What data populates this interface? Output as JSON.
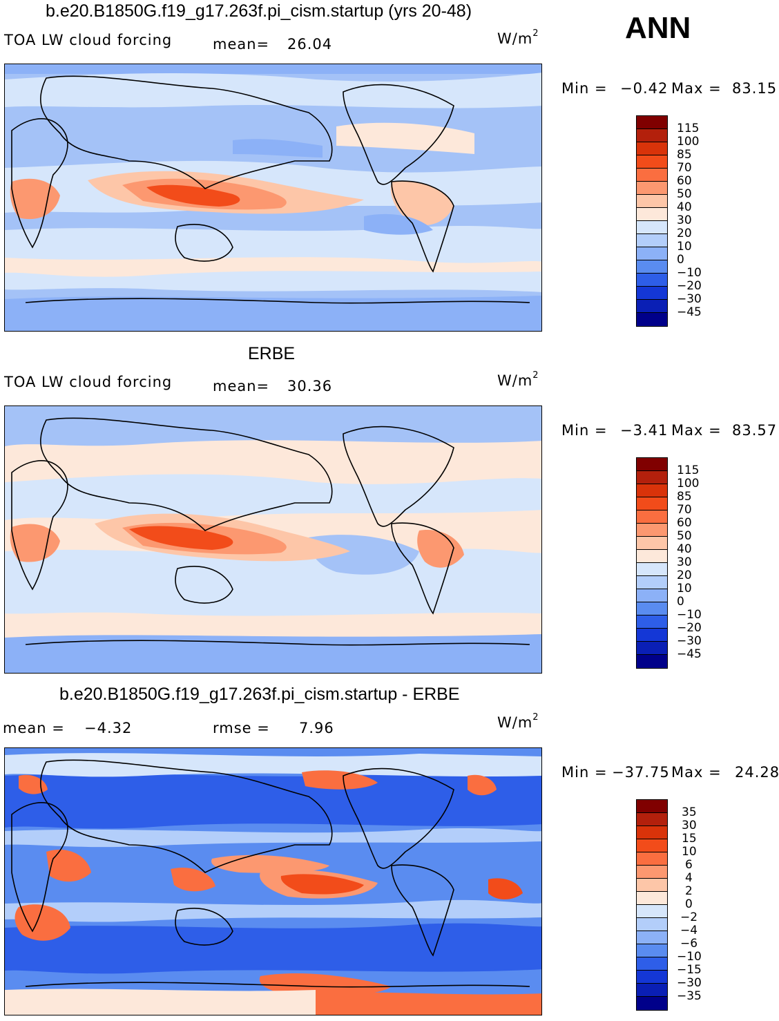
{
  "season": "ANN",
  "panels": [
    {
      "title": "b.e20.B1850G.f19_g17.263f.pi_cism.startup (yrs 20-48)",
      "variable": "TOA LW cloud forcing",
      "stat1_label": "mean=",
      "stat1_value": "26.04",
      "stat2_label": "",
      "stat2_value": "",
      "units_base": "W/m",
      "units_exp": "2",
      "min_label": "Min  =",
      "min_value": "−0.42",
      "max_label": "Max  =",
      "max_value": "83.15",
      "levels": [
        "115",
        "100",
        "85",
        "70",
        "60",
        "50",
        "40",
        "30",
        "20",
        "10",
        "0",
        "−10",
        "−20",
        "−30",
        "−45"
      ]
    },
    {
      "title": "ERBE",
      "variable": "TOA LW cloud forcing",
      "stat1_label": "mean=",
      "stat1_value": "30.36",
      "stat2_label": "",
      "stat2_value": "",
      "units_base": "W/m",
      "units_exp": "2",
      "min_label": "Min  =",
      "min_value": "−3.41",
      "max_label": "Max  =",
      "max_value": "83.57",
      "levels": [
        "115",
        "100",
        "85",
        "70",
        "60",
        "50",
        "40",
        "30",
        "20",
        "10",
        "0",
        "−10",
        "−20",
        "−30",
        "−45"
      ]
    },
    {
      "title": "b.e20.B1850G.f19_g17.263f.pi_cism.startup - ERBE",
      "variable": "",
      "stat1_label": "mean  =",
      "stat1_value": "−4.32",
      "stat2_label": "rmse  =",
      "stat2_value": "7.96",
      "units_base": "W/m",
      "units_exp": "2",
      "min_label": "Min  =",
      "min_value": "−37.75",
      "max_label": "Max  =",
      "max_value": "24.28",
      "levels": [
        "35",
        "30",
        "15",
        "10",
        "6",
        "4",
        "2",
        "0",
        "−2",
        "−4",
        "−6",
        "−10",
        "−15",
        "−30",
        "−35"
      ]
    }
  ],
  "colors": {
    "colorbar": [
      "#800000",
      "#b3200c",
      "#d9330a",
      "#f24c1a",
      "#fa6e40",
      "#fc9870",
      "#fdc6a8",
      "#fde8da",
      "#d6e6fb",
      "#b3cefa",
      "#8cb1f7",
      "#5a8cf0",
      "#2e5ee8",
      "#1437d6",
      "#0a1fb5",
      "#00008a"
    ],
    "ocean_base": "#a4c2f7",
    "land_line": "#000000"
  },
  "chart_data": [
    {
      "type": "heatmap",
      "title": "b.e20.B1850G.f19_g17.263f.pi_cism.startup (yrs 20-48)",
      "variable": "TOA LW cloud forcing",
      "units": "W/m2",
      "mean": 26.04,
      "min": -0.42,
      "max": 83.15,
      "contour_levels": [
        -45,
        -30,
        -20,
        -10,
        0,
        10,
        20,
        30,
        40,
        50,
        60,
        70,
        85,
        100,
        115
      ]
    },
    {
      "type": "heatmap",
      "title": "ERBE",
      "variable": "TOA LW cloud forcing",
      "units": "W/m2",
      "mean": 30.36,
      "min": -3.41,
      "max": 83.57,
      "contour_levels": [
        -45,
        -30,
        -20,
        -10,
        0,
        10,
        20,
        30,
        40,
        50,
        60,
        70,
        85,
        100,
        115
      ]
    },
    {
      "type": "heatmap",
      "title": "b.e20.B1850G.f19_g17.263f.pi_cism.startup - ERBE",
      "units": "W/m2",
      "mean": -4.32,
      "rmse": 7.96,
      "min": -37.75,
      "max": 24.28,
      "contour_levels": [
        -35,
        -30,
        -15,
        -10,
        -6,
        -4,
        -2,
        0,
        2,
        4,
        6,
        10,
        15,
        30,
        35
      ]
    }
  ]
}
